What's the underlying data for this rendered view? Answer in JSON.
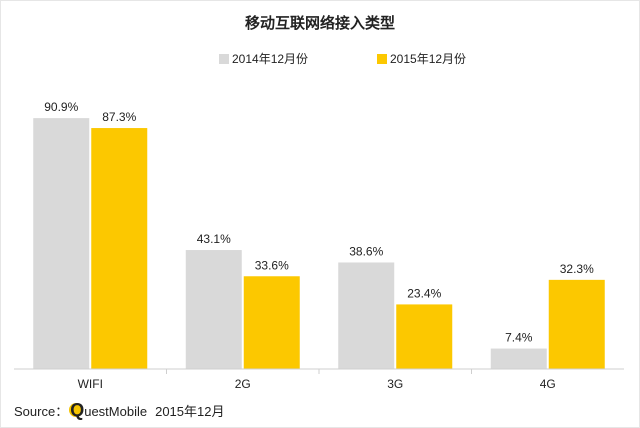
{
  "chart_data": {
    "type": "bar",
    "title": "移动互联网络接入类型",
    "categories": [
      "WIFI",
      "2G",
      "3G",
      "4G"
    ],
    "series": [
      {
        "name": "2014年12月份",
        "color": "#d9d9d9",
        "values": [
          90.9,
          43.1,
          38.6,
          7.4
        ]
      },
      {
        "name": "2015年12月份",
        "color": "#fcc800",
        "values": [
          87.3,
          33.6,
          23.4,
          32.3
        ]
      }
    ],
    "value_suffix": "%",
    "ylim": [
      0,
      100
    ],
    "grid": false,
    "legend_position": "top"
  },
  "source": {
    "label": "Source：",
    "logo_letter": "Q",
    "brand_rest": "uestMobile",
    "date": "2015年12月"
  }
}
